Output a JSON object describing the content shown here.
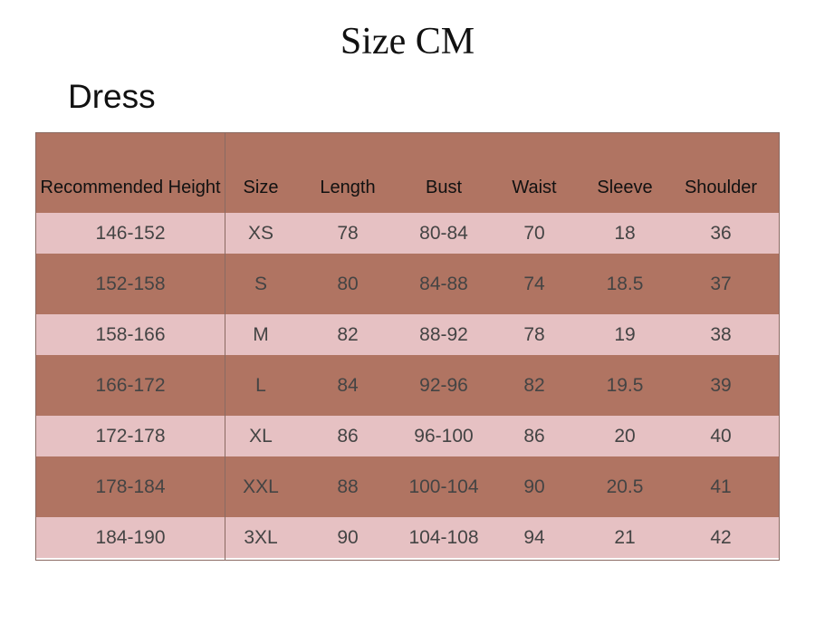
{
  "title": "Size CM",
  "subtitle": "Dress",
  "table": {
    "header": [
      "Recommended Height",
      "Size",
      "Length",
      "Bust",
      "Waist",
      "Sleeve",
      "Shoulder"
    ],
    "rows": [
      [
        "146-152",
        "XS",
        "78",
        "80-84",
        "70",
        "18",
        "36"
      ],
      [
        "152-158",
        "S",
        "80",
        "84-88",
        "74",
        "18.5",
        "37"
      ],
      [
        "158-166",
        "M",
        "82",
        "88-92",
        "78",
        "19",
        "38"
      ],
      [
        "166-172",
        "L",
        "84",
        "92-96",
        "82",
        "19.5",
        "39"
      ],
      [
        "172-178",
        "XL",
        "86",
        "96-100",
        "86",
        "20",
        "40"
      ],
      [
        "178-184",
        "XXL",
        "88",
        "100-104",
        "90",
        "20.5",
        "41"
      ],
      [
        "184-190",
        "3XL",
        "90",
        "104-108",
        "94",
        "21",
        "42"
      ]
    ]
  }
}
